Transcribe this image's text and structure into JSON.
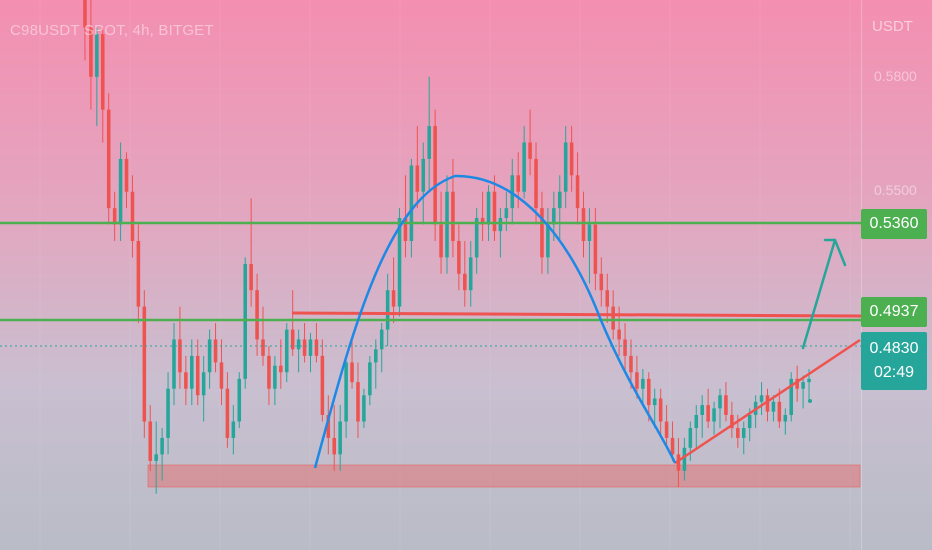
{
  "symbol_title": "C98USDT SPOT, 4h, BITGET",
  "price_axis": {
    "unit": "USDT",
    "ticks": [
      "0.5800",
      "0.5500"
    ]
  },
  "price_tags": {
    "resistance_upper": "0.5360",
    "resistance_lower": "0.4937",
    "last_price": "0.4830",
    "countdown": "02:49"
  },
  "colors": {
    "bull": "#26a69a",
    "bear": "#ef5350",
    "level_line": "#4caf50",
    "trendline": "#ef5350",
    "arc": "#1e88e5",
    "arrow": "#26a69a",
    "support_zone": "#ef5350"
  },
  "chart_data": {
    "type": "candlestick",
    "ylim": [
      0.44,
      0.6
    ],
    "horizontal_levels": [
      0.536,
      0.4937
    ],
    "last_price": 0.483,
    "support_zone": [
      0.444,
      0.449
    ],
    "candles": [
      [
        0.615,
        0.62,
        0.58,
        0.59
      ],
      [
        0.59,
        0.6,
        0.565,
        0.575
      ],
      [
        0.575,
        0.59,
        0.56,
        0.588
      ],
      [
        0.588,
        0.59,
        0.555,
        0.565
      ],
      [
        0.565,
        0.57,
        0.53,
        0.535
      ],
      [
        0.535,
        0.54,
        0.525,
        0.53
      ],
      [
        0.53,
        0.555,
        0.525,
        0.55
      ],
      [
        0.55,
        0.552,
        0.535,
        0.54
      ],
      [
        0.54,
        0.545,
        0.52,
        0.525
      ],
      [
        0.525,
        0.53,
        0.5,
        0.505
      ],
      [
        0.505,
        0.51,
        0.465,
        0.47
      ],
      [
        0.47,
        0.475,
        0.455,
        0.458
      ],
      [
        0.458,
        0.47,
        0.448,
        0.46
      ],
      [
        0.46,
        0.468,
        0.452,
        0.465
      ],
      [
        0.465,
        0.485,
        0.46,
        0.48
      ],
      [
        0.48,
        0.5,
        0.475,
        0.495
      ],
      [
        0.495,
        0.505,
        0.48,
        0.485
      ],
      [
        0.485,
        0.49,
        0.475,
        0.48
      ],
      [
        0.48,
        0.495,
        0.475,
        0.49
      ],
      [
        0.49,
        0.495,
        0.475,
        0.478
      ],
      [
        0.478,
        0.49,
        0.47,
        0.485
      ],
      [
        0.485,
        0.498,
        0.48,
        0.495
      ],
      [
        0.495,
        0.5,
        0.485,
        0.488
      ],
      [
        0.488,
        0.495,
        0.475,
        0.48
      ],
      [
        0.48,
        0.485,
        0.462,
        0.465
      ],
      [
        0.465,
        0.475,
        0.46,
        0.47
      ],
      [
        0.47,
        0.485,
        0.468,
        0.483
      ],
      [
        0.483,
        0.52,
        0.48,
        0.518
      ],
      [
        0.518,
        0.538,
        0.505,
        0.51
      ],
      [
        0.51,
        0.515,
        0.49,
        0.495
      ],
      [
        0.495,
        0.505,
        0.487,
        0.49
      ],
      [
        0.49,
        0.493,
        0.475,
        0.48
      ],
      [
        0.48,
        0.49,
        0.475,
        0.487
      ],
      [
        0.487,
        0.495,
        0.48,
        0.485
      ],
      [
        0.485,
        0.5,
        0.482,
        0.498
      ],
      [
        0.498,
        0.51,
        0.49,
        0.492
      ],
      [
        0.492,
        0.498,
        0.485,
        0.495
      ],
      [
        0.495,
        0.5,
        0.488,
        0.49
      ],
      [
        0.49,
        0.497,
        0.485,
        0.495
      ],
      [
        0.495,
        0.5,
        0.488,
        0.49
      ],
      [
        0.49,
        0.495,
        0.47,
        0.472
      ],
      [
        0.472,
        0.478,
        0.46,
        0.465
      ],
      [
        0.465,
        0.475,
        0.455,
        0.46
      ],
      [
        0.46,
        0.475,
        0.455,
        0.47
      ],
      [
        0.47,
        0.49,
        0.465,
        0.488
      ],
      [
        0.488,
        0.495,
        0.48,
        0.482
      ],
      [
        0.482,
        0.488,
        0.465,
        0.47
      ],
      [
        0.47,
        0.48,
        0.468,
        0.478
      ],
      [
        0.478,
        0.49,
        0.475,
        0.488
      ],
      [
        0.488,
        0.495,
        0.48,
        0.492
      ],
      [
        0.492,
        0.5,
        0.485,
        0.498
      ],
      [
        0.498,
        0.515,
        0.493,
        0.51
      ],
      [
        0.51,
        0.52,
        0.5,
        0.505
      ],
      [
        0.505,
        0.535,
        0.502,
        0.532
      ],
      [
        0.532,
        0.545,
        0.52,
        0.525
      ],
      [
        0.525,
        0.55,
        0.52,
        0.548
      ],
      [
        0.548,
        0.56,
        0.535,
        0.54
      ],
      [
        0.54,
        0.555,
        0.53,
        0.55
      ],
      [
        0.55,
        0.575,
        0.54,
        0.56
      ],
      [
        0.56,
        0.565,
        0.525,
        0.53
      ],
      [
        0.53,
        0.54,
        0.515,
        0.52
      ],
      [
        0.52,
        0.545,
        0.515,
        0.54
      ],
      [
        0.54,
        0.55,
        0.52,
        0.525
      ],
      [
        0.525,
        0.53,
        0.51,
        0.515
      ],
      [
        0.515,
        0.525,
        0.505,
        0.51
      ],
      [
        0.51,
        0.525,
        0.505,
        0.52
      ],
      [
        0.52,
        0.535,
        0.515,
        0.532
      ],
      [
        0.532,
        0.54,
        0.525,
        0.53
      ],
      [
        0.53,
        0.542,
        0.525,
        0.54
      ],
      [
        0.54,
        0.545,
        0.525,
        0.528
      ],
      [
        0.528,
        0.535,
        0.52,
        0.532
      ],
      [
        0.532,
        0.54,
        0.528,
        0.535
      ],
      [
        0.535,
        0.55,
        0.53,
        0.545
      ],
      [
        0.545,
        0.552,
        0.535,
        0.54
      ],
      [
        0.54,
        0.56,
        0.538,
        0.555
      ],
      [
        0.555,
        0.565,
        0.545,
        0.55
      ],
      [
        0.55,
        0.555,
        0.53,
        0.535
      ],
      [
        0.535,
        0.54,
        0.515,
        0.52
      ],
      [
        0.52,
        0.535,
        0.515,
        0.53
      ],
      [
        0.53,
        0.54,
        0.525,
        0.535
      ],
      [
        0.535,
        0.545,
        0.525,
        0.54
      ],
      [
        0.54,
        0.56,
        0.535,
        0.555
      ],
      [
        0.555,
        0.56,
        0.54,
        0.545
      ],
      [
        0.545,
        0.552,
        0.53,
        0.535
      ],
      [
        0.535,
        0.54,
        0.52,
        0.525
      ],
      [
        0.525,
        0.535,
        0.512,
        0.53
      ],
      [
        0.53,
        0.535,
        0.51,
        0.515
      ],
      [
        0.515,
        0.52,
        0.505,
        0.51
      ],
      [
        0.51,
        0.515,
        0.5,
        0.505
      ],
      [
        0.505,
        0.51,
        0.495,
        0.498
      ],
      [
        0.498,
        0.505,
        0.49,
        0.495
      ],
      [
        0.495,
        0.5,
        0.485,
        0.49
      ],
      [
        0.49,
        0.495,
        0.48,
        0.485
      ],
      [
        0.485,
        0.49,
        0.477,
        0.48
      ],
      [
        0.48,
        0.486,
        0.475,
        0.483
      ],
      [
        0.483,
        0.485,
        0.47,
        0.475
      ],
      [
        0.475,
        0.48,
        0.468,
        0.477
      ],
      [
        0.477,
        0.48,
        0.465,
        0.47
      ],
      [
        0.47,
        0.475,
        0.462,
        0.465
      ],
      [
        0.465,
        0.47,
        0.458,
        0.46
      ],
      [
        0.46,
        0.465,
        0.45,
        0.455
      ],
      [
        0.455,
        0.465,
        0.452,
        0.462
      ],
      [
        0.462,
        0.47,
        0.458,
        0.468
      ],
      [
        0.468,
        0.475,
        0.462,
        0.472
      ],
      [
        0.472,
        0.478,
        0.465,
        0.475
      ],
      [
        0.475,
        0.48,
        0.468,
        0.47
      ],
      [
        0.47,
        0.476,
        0.466,
        0.474
      ],
      [
        0.474,
        0.48,
        0.468,
        0.478
      ],
      [
        0.478,
        0.482,
        0.47,
        0.472
      ],
      [
        0.472,
        0.476,
        0.465,
        0.468
      ],
      [
        0.468,
        0.472,
        0.462,
        0.465
      ],
      [
        0.465,
        0.47,
        0.46,
        0.468
      ],
      [
        0.468,
        0.474,
        0.464,
        0.472
      ],
      [
        0.472,
        0.478,
        0.468,
        0.476
      ],
      [
        0.476,
        0.482,
        0.472,
        0.478
      ],
      [
        0.478,
        0.48,
        0.47,
        0.473
      ],
      [
        0.473,
        0.478,
        0.47,
        0.476
      ],
      [
        0.476,
        0.48,
        0.468,
        0.47
      ],
      [
        0.47,
        0.474,
        0.466,
        0.472
      ],
      [
        0.472,
        0.485,
        0.47,
        0.483
      ],
      [
        0.483,
        0.487,
        0.476,
        0.48
      ],
      [
        0.48,
        0.484,
        0.474,
        0.482
      ],
      [
        0.482,
        0.486,
        0.476,
        0.483
      ]
    ]
  }
}
